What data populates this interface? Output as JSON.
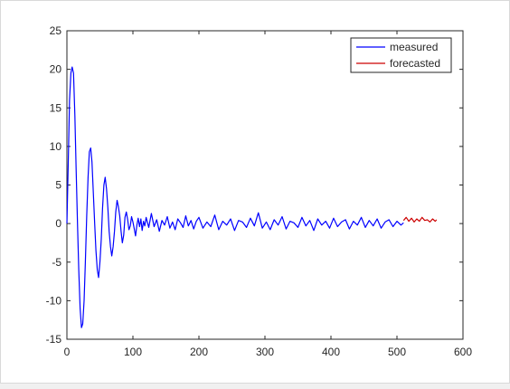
{
  "chart_data": {
    "type": "line",
    "xlim": [
      0,
      600
    ],
    "ylim": [
      -15,
      25
    ],
    "x_ticks": [
      "0",
      "100",
      "200",
      "300",
      "400",
      "500",
      "600"
    ],
    "y_ticks": [
      "-15",
      "-10",
      "-5",
      "0",
      "5",
      "10",
      "15",
      "20",
      "25"
    ],
    "grid": false,
    "legend_position": "top-right",
    "series": [
      {
        "name": "measured",
        "color": "#0000ff",
        "x": [
          0,
          2,
          4,
          6,
          8,
          10,
          12,
          14,
          16,
          18,
          20,
          22,
          24,
          26,
          28,
          30,
          32,
          34,
          36,
          38,
          40,
          42,
          44,
          46,
          48,
          50,
          52,
          54,
          56,
          58,
          60,
          62,
          64,
          66,
          68,
          70,
          72,
          74,
          76,
          78,
          80,
          82,
          84,
          86,
          88,
          90,
          92,
          94,
          96,
          98,
          100,
          102,
          104,
          106,
          108,
          110,
          112,
          114,
          116,
          118,
          120,
          124,
          128,
          132,
          136,
          140,
          144,
          148,
          152,
          156,
          160,
          164,
          168,
          172,
          176,
          180,
          184,
          188,
          192,
          196,
          200,
          206,
          212,
          218,
          224,
          230,
          236,
          242,
          248,
          254,
          260,
          266,
          272,
          278,
          284,
          290,
          296,
          302,
          308,
          314,
          320,
          326,
          332,
          338,
          344,
          350,
          356,
          362,
          368,
          374,
          380,
          386,
          392,
          398,
          404,
          410,
          416,
          422,
          428,
          434,
          440,
          446,
          452,
          458,
          464,
          470,
          476,
          482,
          488,
          494,
          500,
          506,
          510
        ],
        "y": [
          0,
          8,
          16,
          19.5,
          20.3,
          19.5,
          14,
          7,
          0,
          -6,
          -11,
          -13.5,
          -13,
          -10,
          -5,
          1,
          6,
          9.3,
          9.8,
          8,
          4,
          0,
          -3.5,
          -6,
          -7,
          -5,
          -2,
          2,
          5,
          6,
          4.5,
          2,
          -1,
          -3,
          -4.2,
          -3,
          -1,
          1.5,
          3,
          2.2,
          1,
          -1,
          -2.5,
          -1.5,
          0.8,
          1.5,
          0.5,
          -0.8,
          -0.3,
          0.9,
          0.2,
          -0.7,
          -1.6,
          -0.2,
          0.7,
          -0.4,
          0.6,
          -0.9,
          0.3,
          -0.3,
          0.8,
          -0.5,
          1.3,
          -0.4,
          0.5,
          -1.0,
          0.4,
          -0.2,
          0.9,
          -0.6,
          0.2,
          -0.8,
          0.6,
          0.1,
          -0.5,
          1.0,
          -0.3,
          0.4,
          -0.7,
          0.3,
          0.8,
          -0.6,
          0.2,
          -0.4,
          1.1,
          -0.8,
          0.3,
          -0.2,
          0.6,
          -0.9,
          0.4,
          0.2,
          -0.5,
          0.7,
          -0.3,
          1.4,
          -0.6,
          0.2,
          -0.8,
          0.5,
          -0.2,
          0.9,
          -0.7,
          0.3,
          0.1,
          -0.5,
          0.8,
          -0.3,
          0.4,
          -0.9,
          0.6,
          -0.2,
          0.3,
          -0.6,
          0.7,
          -0.4,
          0.2,
          0.5,
          -0.7,
          0.3,
          -0.2,
          0.8,
          -0.5,
          0.4,
          -0.3,
          0.6,
          -0.6,
          0.2,
          0.5,
          -0.4,
          0.3,
          -0.2,
          0.1
        ]
      },
      {
        "name": "forecasted",
        "color": "#cc0000",
        "x": [
          510,
          514,
          518,
          522,
          526,
          530,
          534,
          538,
          542,
          546,
          550,
          554,
          558,
          560
        ],
        "y": [
          0.4,
          0.8,
          0.3,
          0.7,
          0.2,
          0.6,
          0.3,
          0.8,
          0.4,
          0.5,
          0.2,
          0.6,
          0.3,
          0.5
        ]
      }
    ]
  }
}
